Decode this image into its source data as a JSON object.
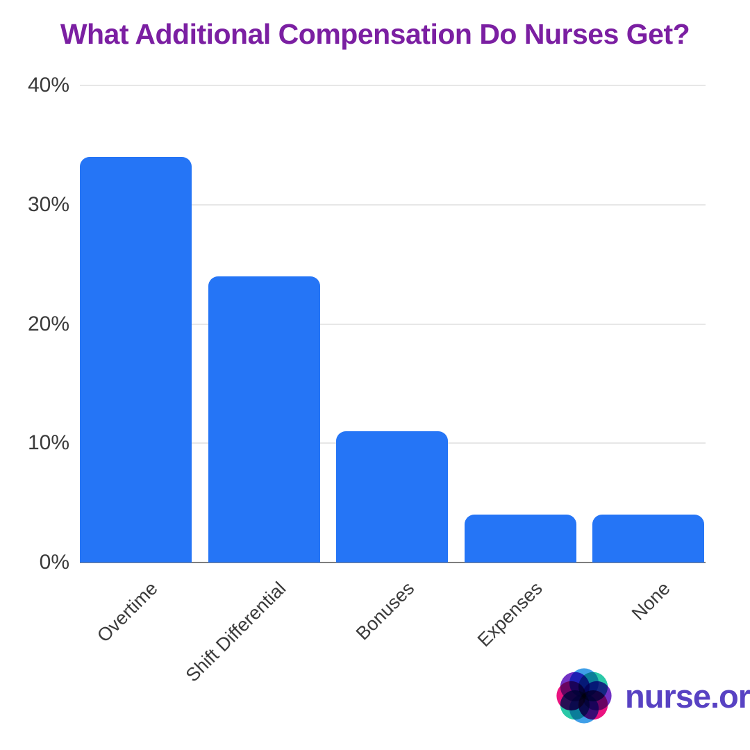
{
  "chart_data": {
    "type": "bar",
    "title": "What Additional Compensation Do Nurses Get?",
    "categories": [
      "Overtime",
      "Shift Differential",
      "Bonuses",
      "Expenses",
      "None"
    ],
    "values": [
      34,
      24,
      11,
      4,
      4
    ],
    "xlabel": "",
    "ylabel": "",
    "ylim": [
      0,
      40
    ],
    "yticks": [
      0,
      10,
      20,
      30,
      40
    ],
    "ytick_labels": [
      "0%",
      "10%",
      "20%",
      "30%",
      "40%"
    ],
    "grid": true,
    "legend": "none",
    "bar_color": "#2575F6"
  },
  "colors": {
    "title": "#7B1FA2",
    "bar": "#2575F6",
    "gridline": "#E7E7E7",
    "axis_baseline": "#7E7E7E",
    "tick_text": "#3B3B3B",
    "brand_text": "#5842C3",
    "logo_blue": "#3F9FE8",
    "logo_teal": "#2BC8A8",
    "logo_purple": "#7232C4",
    "logo_magenta": "#EA1380",
    "logo_center": "#151243"
  },
  "branding": {
    "logo_text": "nurse.org",
    "logo_icon": "nurse-org-flower-logo"
  }
}
